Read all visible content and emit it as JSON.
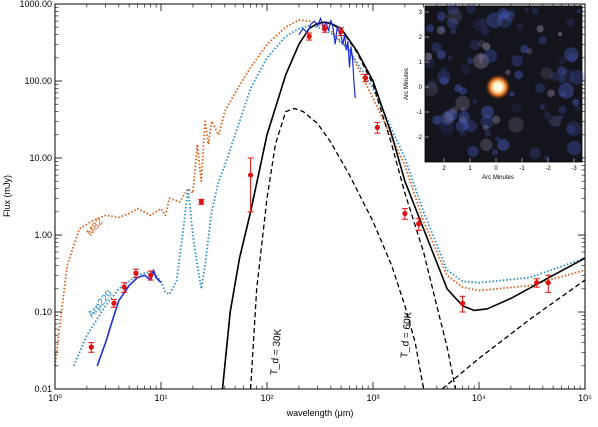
{
  "chart_data": {
    "type": "line",
    "xlabel": "wavelength (μm)",
    "ylabel": "Flux (mJy)",
    "xscale": "log",
    "yscale": "log",
    "xlim": [
      1,
      100000
    ],
    "ylim": [
      0.01,
      1000
    ],
    "x_tick_labels": [
      "10⁰",
      "10¹",
      "10²",
      "10³",
      "10⁴",
      "10⁵"
    ],
    "y_tick_labels": [
      "0.01",
      "0.10",
      "1.00",
      "10.00",
      "100.00",
      "1000.00"
    ],
    "grid": false,
    "colors": {
      "m82": "#d95f1a",
      "arp220": "#2a8fc8",
      "spectrum": "#1c2fd8",
      "photometry": "#e01010",
      "fit": "#000000"
    },
    "series": [
      {
        "name": "M82",
        "style": "dotted",
        "color": "#d95f1a",
        "points": [
          [
            1,
            0.02
          ],
          [
            1.3,
            0.4
          ],
          [
            1.7,
            1.2
          ],
          [
            2.2,
            1.5
          ],
          [
            3,
            1.8
          ],
          [
            4,
            1.7
          ],
          [
            5,
            1.9
          ],
          [
            6,
            2.2
          ],
          [
            8,
            1.8
          ],
          [
            10,
            2.2
          ],
          [
            11,
            1.8
          ],
          [
            12,
            3
          ],
          [
            15,
            2.7
          ],
          [
            18,
            4
          ],
          [
            20,
            3.5
          ],
          [
            22,
            15
          ],
          [
            24,
            5
          ],
          [
            26,
            30
          ],
          [
            28,
            15
          ],
          [
            30,
            30
          ],
          [
            35,
            20
          ],
          [
            40,
            40
          ],
          [
            50,
            70
          ],
          [
            70,
            150
          ],
          [
            100,
            300
          ],
          [
            150,
            500
          ],
          [
            200,
            620
          ],
          [
            250,
            600
          ],
          [
            300,
            550
          ],
          [
            400,
            450
          ],
          [
            600,
            250
          ],
          [
            1000,
            60
          ],
          [
            2000,
            8
          ],
          [
            3000,
            1.5
          ],
          [
            5000,
            0.3
          ],
          [
            7000,
            0.21
          ],
          [
            10000,
            0.19
          ],
          [
            30000,
            0.22
          ],
          [
            100000,
            0.35
          ]
        ]
      },
      {
        "name": "Arp220",
        "style": "dotted",
        "color": "#2a8fc8",
        "points": [
          [
            1.5,
            0.02
          ],
          [
            2,
            0.05
          ],
          [
            3,
            0.12
          ],
          [
            4,
            0.2
          ],
          [
            5,
            0.25
          ],
          [
            6,
            0.3
          ],
          [
            7,
            0.32
          ],
          [
            8,
            0.33
          ],
          [
            9,
            0.3
          ],
          [
            10,
            0.25
          ],
          [
            11,
            0.18
          ],
          [
            12,
            0.17
          ],
          [
            14,
            0.25
          ],
          [
            16,
            1
          ],
          [
            18,
            4
          ],
          [
            20,
            1
          ],
          [
            22,
            0.4
          ],
          [
            24,
            0.2
          ],
          [
            26,
            0.4
          ],
          [
            30,
            2
          ],
          [
            35,
            5
          ],
          [
            40,
            8
          ],
          [
            50,
            20
          ],
          [
            70,
            80
          ],
          [
            100,
            200
          ],
          [
            150,
            380
          ],
          [
            200,
            480
          ],
          [
            250,
            520
          ],
          [
            300,
            500
          ],
          [
            400,
            420
          ],
          [
            600,
            250
          ],
          [
            1000,
            80
          ],
          [
            2000,
            10
          ],
          [
            3000,
            2
          ],
          [
            5000,
            0.35
          ],
          [
            7000,
            0.25
          ],
          [
            10000,
            0.24
          ],
          [
            30000,
            0.28
          ],
          [
            100000,
            0.5
          ]
        ]
      },
      {
        "name": "",
        "style": "solid",
        "color": "#000000",
        "points": [
          [
            38,
            0.01
          ],
          [
            45,
            0.1
          ],
          [
            55,
            0.5
          ],
          [
            70,
            2
          ],
          [
            100,
            20
          ],
          [
            150,
            120
          ],
          [
            200,
            300
          ],
          [
            250,
            480
          ],
          [
            300,
            560
          ],
          [
            350,
            580
          ],
          [
            400,
            560
          ],
          [
            500,
            480
          ],
          [
            700,
            250
          ],
          [
            1000,
            100
          ],
          [
            1500,
            20
          ],
          [
            2000,
            5
          ],
          [
            3000,
            1.2
          ],
          [
            5000,
            0.2
          ],
          [
            7000,
            0.12
          ],
          [
            9000,
            0.105
          ],
          [
            12000,
            0.11
          ],
          [
            20000,
            0.15
          ],
          [
            50000,
            0.3
          ],
          [
            100000,
            0.5
          ]
        ]
      },
      {
        "name": "",
        "style": "dashed",
        "color": "#000000",
        "points": [
          [
            70,
            0.01
          ],
          [
            80,
            0.2
          ],
          [
            100,
            3
          ],
          [
            120,
            15
          ],
          [
            150,
            40
          ],
          [
            180,
            44
          ],
          [
            220,
            40
          ],
          [
            300,
            28
          ],
          [
            400,
            16
          ],
          [
            600,
            6
          ],
          [
            1000,
            1.5
          ],
          [
            1500,
            0.4
          ],
          [
            2000,
            0.12
          ],
          [
            2500,
            0.04
          ],
          [
            3000,
            0.01
          ]
        ]
      },
      {
        "name": "",
        "style": "dashed",
        "color": "#000000",
        "points": [
          [
            38,
            0.01
          ],
          [
            45,
            0.1
          ],
          [
            55,
            0.5
          ],
          [
            70,
            2
          ],
          [
            100,
            20
          ],
          [
            150,
            120
          ],
          [
            200,
            300
          ],
          [
            250,
            480
          ],
          [
            300,
            560
          ],
          [
            350,
            580
          ],
          [
            400,
            550
          ],
          [
            500,
            470
          ],
          [
            700,
            240
          ],
          [
            1000,
            90
          ],
          [
            1500,
            15
          ],
          [
            2000,
            3.5
          ],
          [
            3000,
            0.6
          ],
          [
            4000,
            0.12
          ],
          [
            5000,
            0.035
          ],
          [
            6000,
            0.01
          ]
        ]
      },
      {
        "name": "",
        "style": "dashed",
        "color": "#000000",
        "points": [
          [
            4500,
            0.01
          ],
          [
            10000,
            0.025
          ],
          [
            30000,
            0.08
          ],
          [
            100000,
            0.26
          ]
        ]
      },
      {
        "name": "",
        "style": "solid",
        "color": "#1c2fd8",
        "points": [
          [
            2.5,
            0.02
          ],
          [
            3,
            0.04
          ],
          [
            3.5,
            0.08
          ],
          [
            4,
            0.14
          ],
          [
            5,
            0.22
          ],
          [
            6,
            0.28
          ],
          [
            7,
            0.3
          ],
          [
            8,
            0.26
          ],
          [
            8.5,
            0.35
          ],
          [
            9,
            0.28
          ],
          [
            10,
            0.24
          ]
        ]
      }
    ],
    "spectrum_points": [
      [
        200,
        400
      ],
      [
        220,
        480
      ],
      [
        240,
        420
      ],
      [
        260,
        550
      ],
      [
        280,
        600
      ],
      [
        300,
        520
      ],
      [
        320,
        650
      ],
      [
        340,
        500
      ],
      [
        360,
        580
      ],
      [
        380,
        450
      ],
      [
        400,
        620
      ],
      [
        420,
        480
      ],
      [
        440,
        300
      ],
      [
        460,
        520
      ],
      [
        480,
        420
      ],
      [
        500,
        380
      ],
      [
        520,
        300
      ],
      [
        540,
        400
      ],
      [
        560,
        250
      ],
      [
        580,
        330
      ],
      [
        600,
        150
      ],
      [
        620,
        280
      ],
      [
        640,
        200
      ],
      [
        660,
        100
      ],
      [
        680,
        60
      ]
    ],
    "photometry": [
      {
        "x": 2.2,
        "y": 0.035,
        "err": 0.005
      },
      {
        "x": 3.6,
        "y": 0.13,
        "err": 0.015
      },
      {
        "x": 4.5,
        "y": 0.21,
        "err": 0.03
      },
      {
        "x": 5.8,
        "y": 0.32,
        "err": 0.04
      },
      {
        "x": 8,
        "y": 0.3,
        "err": 0.04
      },
      {
        "x": 24,
        "y": 2.7,
        "err": 0.2
      },
      {
        "x": 70,
        "y": 6,
        "err": 4
      },
      {
        "x": 250,
        "y": 380,
        "err": 40
      },
      {
        "x": 350,
        "y": 480,
        "err": 50
      },
      {
        "x": 500,
        "y": 440,
        "err": 50
      },
      {
        "x": 850,
        "y": 110,
        "err": 12
      },
      {
        "x": 1100,
        "y": 25,
        "err": 4
      },
      {
        "x": 2000,
        "y": 1.9,
        "err": 0.3
      },
      {
        "x": 2700,
        "y": 1.4,
        "err": 0.25
      },
      {
        "x": 7000,
        "y": 0.13,
        "err": 0.03
      },
      {
        "x": 35000,
        "y": 0.24,
        "err": 0.03
      },
      {
        "x": 45000,
        "y": 0.24,
        "err": 0.06
      }
    ],
    "annotations": [
      {
        "text": "M82",
        "x": 2.5,
        "y": 1.2,
        "color": "#d95f1a",
        "rotate": -50
      },
      {
        "text": "Arp220",
        "x": 2.8,
        "y": 0.12,
        "color": "#2a8fc8",
        "rotate": -50
      },
      {
        "text": "T_d = 30K",
        "x": 130,
        "y": 0.03,
        "color": "#000000",
        "rotate": -85
      },
      {
        "text": "T_d = 60K",
        "x": 2200,
        "y": 0.05,
        "color": "#000000",
        "rotate": -85
      }
    ],
    "inset": {
      "xlabel": "Arc Minutes",
      "ylabel": "Arc Minutes",
      "x_tick_labels": [
        "2",
        "1",
        "0",
        "-1",
        "-2",
        "-3"
      ],
      "y_tick_labels": [
        "3",
        "2",
        "1",
        "0",
        "-1",
        "-2"
      ]
    }
  }
}
